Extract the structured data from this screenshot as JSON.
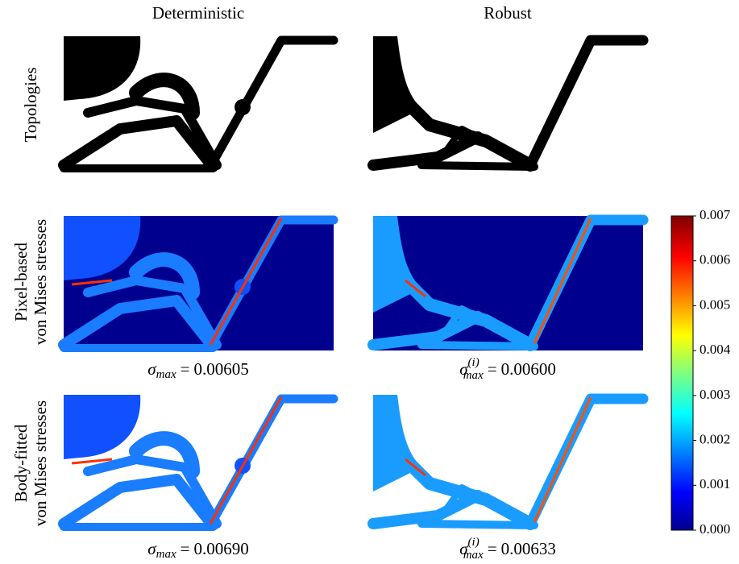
{
  "columns": [
    "Deterministic",
    "Robust"
  ],
  "rows": [
    [
      "Topologies"
    ],
    [
      "Pixel-based",
      "von Mises stresses"
    ],
    [
      "Body-fitted",
      "von Mises stresses"
    ]
  ],
  "captions": [
    {
      "symbol": "σ",
      "sub": "max",
      "sup": null,
      "eq": "=",
      "value": "0.00605"
    },
    {
      "symbol": "σ",
      "sub": "max",
      "sup": "(i)",
      "eq": "=",
      "value": "0.00600"
    },
    {
      "symbol": "σ",
      "sub": "max",
      "sup": null,
      "eq": "=",
      "value": "0.00690"
    },
    {
      "symbol": "σ",
      "sub": "max",
      "sup": "(i)",
      "eq": "=",
      "value": "0.00633"
    }
  ],
  "colorbar": {
    "lim": [
      0,
      0.007
    ],
    "ticks": [
      {
        "value": 0,
        "label": "0.000"
      },
      0.001,
      0.002,
      0.003,
      0.004,
      0.005,
      0.006,
      0.007
    ]
  }
}
